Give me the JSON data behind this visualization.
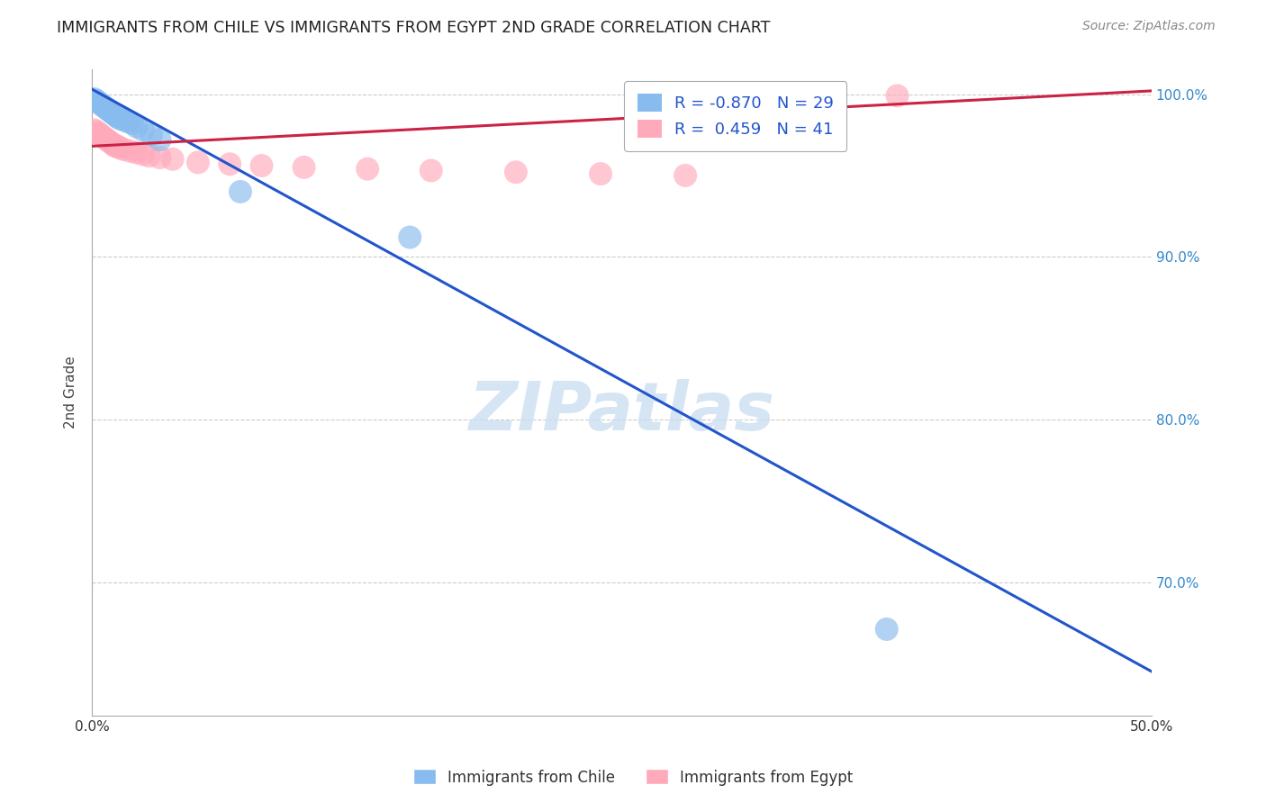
{
  "title": "IMMIGRANTS FROM CHILE VS IMMIGRANTS FROM EGYPT 2ND GRADE CORRELATION CHART",
  "source": "Source: ZipAtlas.com",
  "ylabel_label": "2nd Grade",
  "x_min": 0.0,
  "x_max": 0.5,
  "y_min": 0.618,
  "y_max": 1.015,
  "x_ticks": [
    0.0,
    0.1,
    0.2,
    0.3,
    0.4,
    0.5
  ],
  "x_tick_labels": [
    "0.0%",
    "",
    "",
    "",
    "",
    "50.0%"
  ],
  "y_ticks": [
    0.7,
    0.8,
    0.9,
    1.0
  ],
  "y_tick_labels": [
    "70.0%",
    "80.0%",
    "90.0%",
    "100.0%"
  ],
  "grid_color": "#cccccc",
  "watermark": "ZIPatlas",
  "chile_color": "#88bbee",
  "egypt_color": "#ffaabb",
  "chile_R": -0.87,
  "chile_N": 29,
  "egypt_R": 0.459,
  "egypt_N": 41,
  "chile_line_color": "#2255cc",
  "egypt_line_color": "#cc2244",
  "legend_label_chile": "Immigrants from Chile",
  "legend_label_egypt": "Immigrants from Egypt",
  "chile_line_x0": 0.0,
  "chile_line_y0": 1.003,
  "chile_line_x1": 0.5,
  "chile_line_y1": 0.645,
  "egypt_line_x0": 0.0,
  "egypt_line_y0": 0.968,
  "egypt_line_x1": 0.5,
  "egypt_line_y1": 1.002,
  "chile_points_x": [
    0.001,
    0.002,
    0.003,
    0.004,
    0.005,
    0.006,
    0.007,
    0.008,
    0.009,
    0.01,
    0.011,
    0.012,
    0.013,
    0.015,
    0.017,
    0.019,
    0.021,
    0.024,
    0.028,
    0.032,
    0.07,
    0.15,
    0.375
  ],
  "chile_points_y": [
    0.997,
    0.996,
    0.995,
    0.994,
    0.993,
    0.992,
    0.991,
    0.99,
    0.989,
    0.988,
    0.987,
    0.986,
    0.985,
    0.984,
    0.983,
    0.982,
    0.98,
    0.978,
    0.975,
    0.972,
    0.94,
    0.912,
    0.671
  ],
  "egypt_points_x": [
    0.001,
    0.002,
    0.003,
    0.004,
    0.005,
    0.006,
    0.007,
    0.008,
    0.009,
    0.01,
    0.011,
    0.012,
    0.013,
    0.015,
    0.018,
    0.021,
    0.024,
    0.027,
    0.032,
    0.038,
    0.05,
    0.065,
    0.08,
    0.1,
    0.13,
    0.16,
    0.2,
    0.24,
    0.28,
    0.38
  ],
  "egypt_points_y": [
    0.978,
    0.977,
    0.976,
    0.975,
    0.974,
    0.973,
    0.972,
    0.971,
    0.97,
    0.969,
    0.968,
    0.968,
    0.967,
    0.966,
    0.965,
    0.964,
    0.963,
    0.962,
    0.961,
    0.96,
    0.958,
    0.957,
    0.956,
    0.955,
    0.954,
    0.953,
    0.952,
    0.951,
    0.95,
    0.999
  ]
}
